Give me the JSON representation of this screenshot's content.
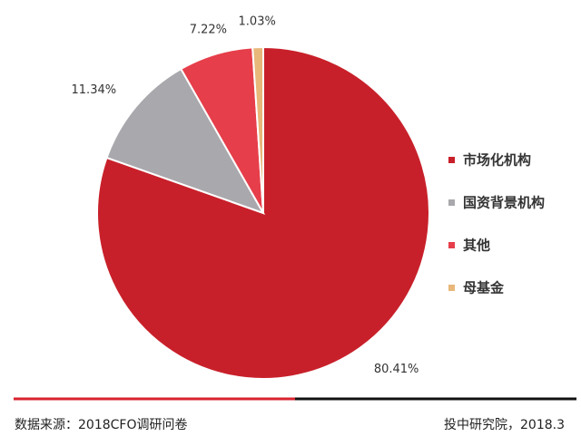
{
  "chart_data": {
    "type": "pie",
    "categories": [
      "市场化机构",
      "国资背景机构",
      "其他",
      "母基金"
    ],
    "values": [
      80.41,
      11.34,
      7.22,
      1.03
    ],
    "value_labels": [
      "80.41%",
      "11.34%",
      "7.22%",
      "1.03%"
    ],
    "colors": [
      "#c8202a",
      "#a9a9ad",
      "#e63e4a",
      "#e8b77a"
    ],
    "legend": "right"
  },
  "footer": {
    "source": "数据来源：2018CFO调研问卷",
    "publisher": "投中研究院，2018.3"
  }
}
